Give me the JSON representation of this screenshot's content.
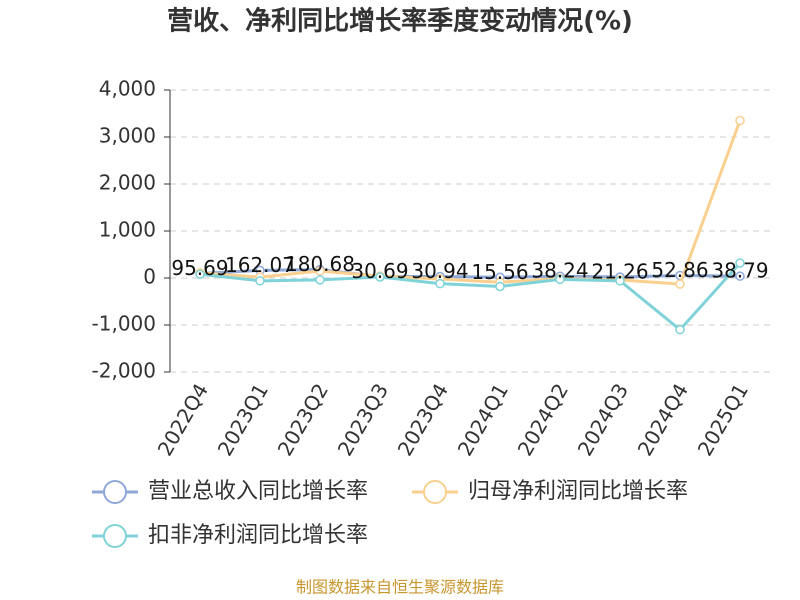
{
  "chart_data": {
    "type": "line",
    "title": "营收、净利同比增长率季度变动情况(%)",
    "categories": [
      "2022Q4",
      "2023Q1",
      "2023Q2",
      "2023Q3",
      "2023Q4",
      "2024Q1",
      "2024Q2",
      "2024Q3",
      "2024Q4",
      "2025Q1"
    ],
    "series": [
      {
        "name": "营业总收入同比增长率",
        "color": "#8fa8d8",
        "values": [
          95.69,
          162.07,
          180.68,
          30.69,
          30.94,
          15.56,
          38.24,
          21.26,
          52.86,
          38.79
        ],
        "labels": true
      },
      {
        "name": "归母净利润同比增长率",
        "color": "#f9d08f",
        "values": [
          110,
          20,
          150,
          40,
          -20,
          -90,
          -10,
          -40,
          -130,
          3350
        ],
        "labels": false
      },
      {
        "name": "扣非净利润同比增长率",
        "color": "#7fd3d8",
        "values": [
          80,
          -60,
          -40,
          20,
          -120,
          -180,
          -30,
          -60,
          -1100,
          320
        ],
        "labels": false
      }
    ],
    "ylim": [
      -2000,
      4000
    ],
    "yticks": [
      {
        "value": -2000,
        "label": "-2,000"
      },
      {
        "value": -1000,
        "label": "-1,000"
      },
      0,
      {
        "value": 1000,
        "label": "1,000"
      },
      {
        "value": 2000,
        "label": "2,000"
      },
      {
        "value": 3000,
        "label": "3,000"
      },
      {
        "value": 4000,
        "label": "4,000"
      }
    ],
    "grid": true,
    "source": "制图数据来自恒生聚源数据库"
  }
}
